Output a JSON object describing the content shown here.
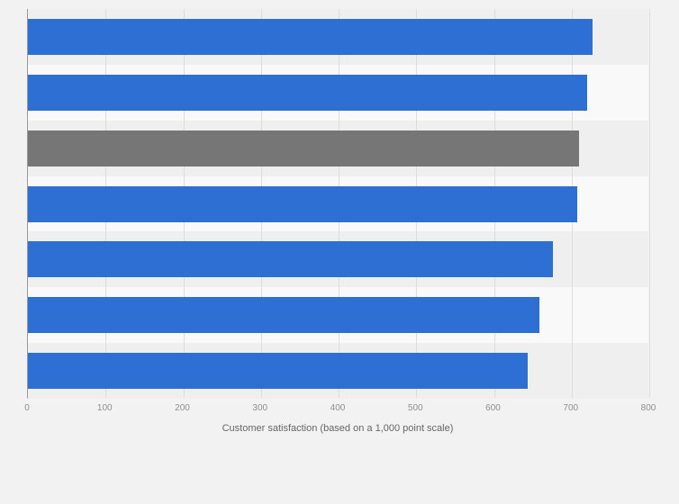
{
  "chart_data": {
    "type": "bar",
    "orientation": "horizontal",
    "title": "",
    "xlabel": "Customer satisfaction (based on a 1,000 point scale)",
    "ylabel": "",
    "xlim": [
      0,
      800
    ],
    "xticks": [
      0,
      100,
      200,
      300,
      400,
      500,
      600,
      700,
      800
    ],
    "xtick_labels": [
      "0",
      "100",
      "200",
      "300",
      "400",
      "500",
      "600",
      "700",
      "800"
    ],
    "grid": true,
    "legend": "none",
    "categories": [
      "",
      "",
      "",
      "",
      "",
      "",
      ""
    ],
    "values": [
      727,
      720,
      709,
      707,
      676,
      659,
      643
    ],
    "bar_colors": [
      "#2e6fd4",
      "#2e6fd4",
      "#767676",
      "#2e6fd4",
      "#2e6fd4",
      "#2e6fd4",
      "#2e6fd4"
    ],
    "highlighted_bar_index": 2
  },
  "style": {
    "background": "#f2f2f2",
    "band_color_a": "#efeff0",
    "band_color_b": "#f9f9fa",
    "gridline_color": "#dddddd",
    "axis_line_color": "#9a9a9a",
    "tick_label_color": "#8f8f8f",
    "axis_label_color": "#666666",
    "primary_bar_color": "#2e6fd4",
    "neutral_bar_color": "#767676"
  }
}
